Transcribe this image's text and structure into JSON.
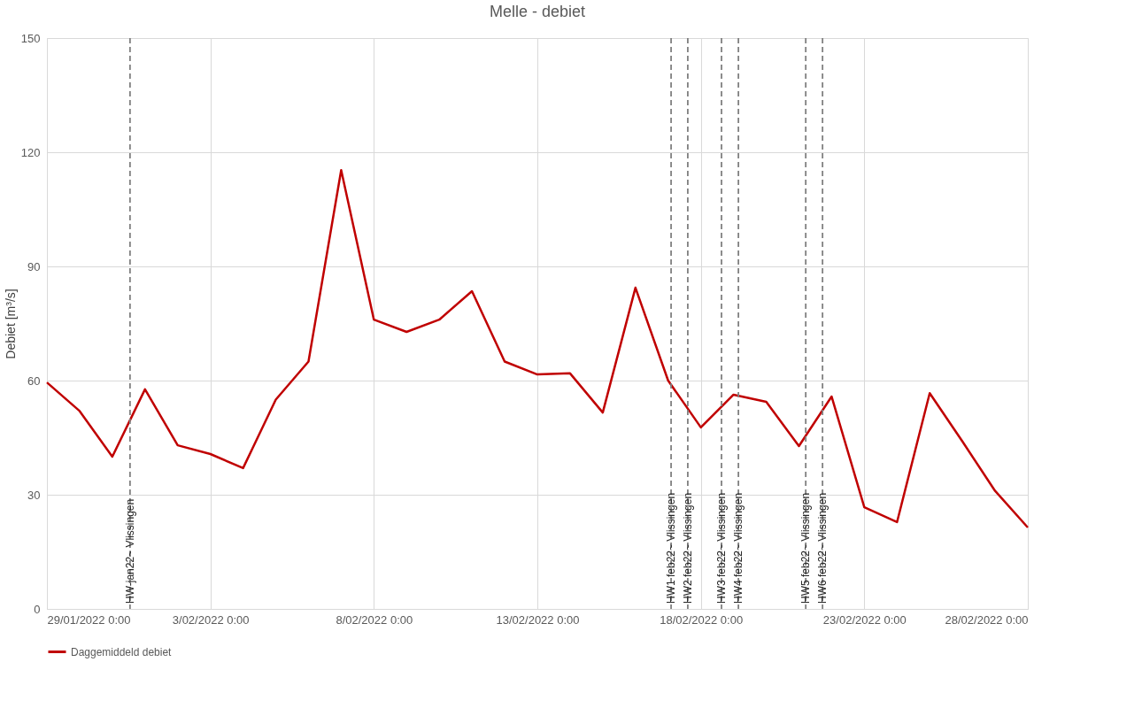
{
  "chart_data": {
    "type": "line",
    "title": "Melle - debiet",
    "ylabel": "Debiet [m³/s]",
    "x": [
      "2022-01-29",
      "2022-01-30",
      "2022-01-31",
      "2022-02-01",
      "2022-02-02",
      "2022-02-03",
      "2022-02-04",
      "2022-02-05",
      "2022-02-06",
      "2022-02-07",
      "2022-02-08",
      "2022-02-09",
      "2022-02-10",
      "2022-02-11",
      "2022-02-12",
      "2022-02-13",
      "2022-02-14",
      "2022-02-15",
      "2022-02-16",
      "2022-02-17",
      "2022-02-18",
      "2022-02-19",
      "2022-02-20",
      "2022-02-21",
      "2022-02-22",
      "2022-02-23",
      "2022-02-24",
      "2022-02-25",
      "2022-02-26",
      "2022-02-27",
      "2022-02-28"
    ],
    "series": [
      {
        "name": "Daggemiddeld debiet",
        "color": "#c00000",
        "values": [
          59.5,
          52,
          40,
          57.7,
          43,
          40.7,
          37,
          55,
          65,
          115.3,
          76,
          72.8,
          76,
          83.5,
          65,
          61.6,
          61.9,
          51.6,
          84.4,
          60,
          47.7,
          56.3,
          54.4,
          42.8,
          55.8,
          26.7,
          22.8,
          56.7,
          44,
          31,
          21.4
        ]
      }
    ],
    "xlim": [
      "2022-01-29",
      "2022-02-28"
    ],
    "xticks": [
      {
        "value": "2022-01-29",
        "label": "29/01/2022 0:00"
      },
      {
        "value": "2022-02-03",
        "label": "3/02/2022 0:00"
      },
      {
        "value": "2022-02-08",
        "label": "8/02/2022 0:00"
      },
      {
        "value": "2022-02-13",
        "label": "13/02/2022 0:00"
      },
      {
        "value": "2022-02-18",
        "label": "18/02/2022 0:00"
      },
      {
        "value": "2022-02-23",
        "label": "23/02/2022 0:00"
      },
      {
        "value": "2022-02-28",
        "label": "28/02/2022 0:00"
      }
    ],
    "ylim": [
      0,
      150
    ],
    "yticks": [
      0,
      30,
      60,
      90,
      120,
      150
    ],
    "ref_lines": [
      {
        "axis": "x",
        "value": "2022-01-31T13:00",
        "label": "HW-jan22~ Vlissingen",
        "color": "#808080",
        "line_style": "dashed"
      },
      {
        "axis": "x",
        "value": "2022-02-17T02:10",
        "label": "HW1 feb22~ Vlissingen",
        "color": "#808080",
        "line_style": "dashed"
      },
      {
        "axis": "x",
        "value": "2022-02-17T14:25",
        "label": "HW2 feb22~ Vlissingen",
        "color": "#808080",
        "line_style": "dashed"
      },
      {
        "axis": "x",
        "value": "2022-02-18T15:10",
        "label": "HW3 feb22~ Vlissingen",
        "color": "#808080",
        "line_style": "dashed"
      },
      {
        "axis": "x",
        "value": "2022-02-19T03:35",
        "label": "HW4 feb22~ Vlissingen",
        "color": "#808080",
        "line_style": "dashed"
      },
      {
        "axis": "x",
        "value": "2022-02-21T05:00",
        "label": "HW5 feb22~ Vlissingen",
        "color": "#808080",
        "line_style": "dashed"
      },
      {
        "axis": "x",
        "value": "2022-02-21T17:20",
        "label": "HW6 feb22~ Vlissingen",
        "color": "#808080",
        "line_style": "dashed"
      }
    ],
    "grid": true,
    "legend": "bottom",
    "marker": "none",
    "line_style": "solid"
  }
}
